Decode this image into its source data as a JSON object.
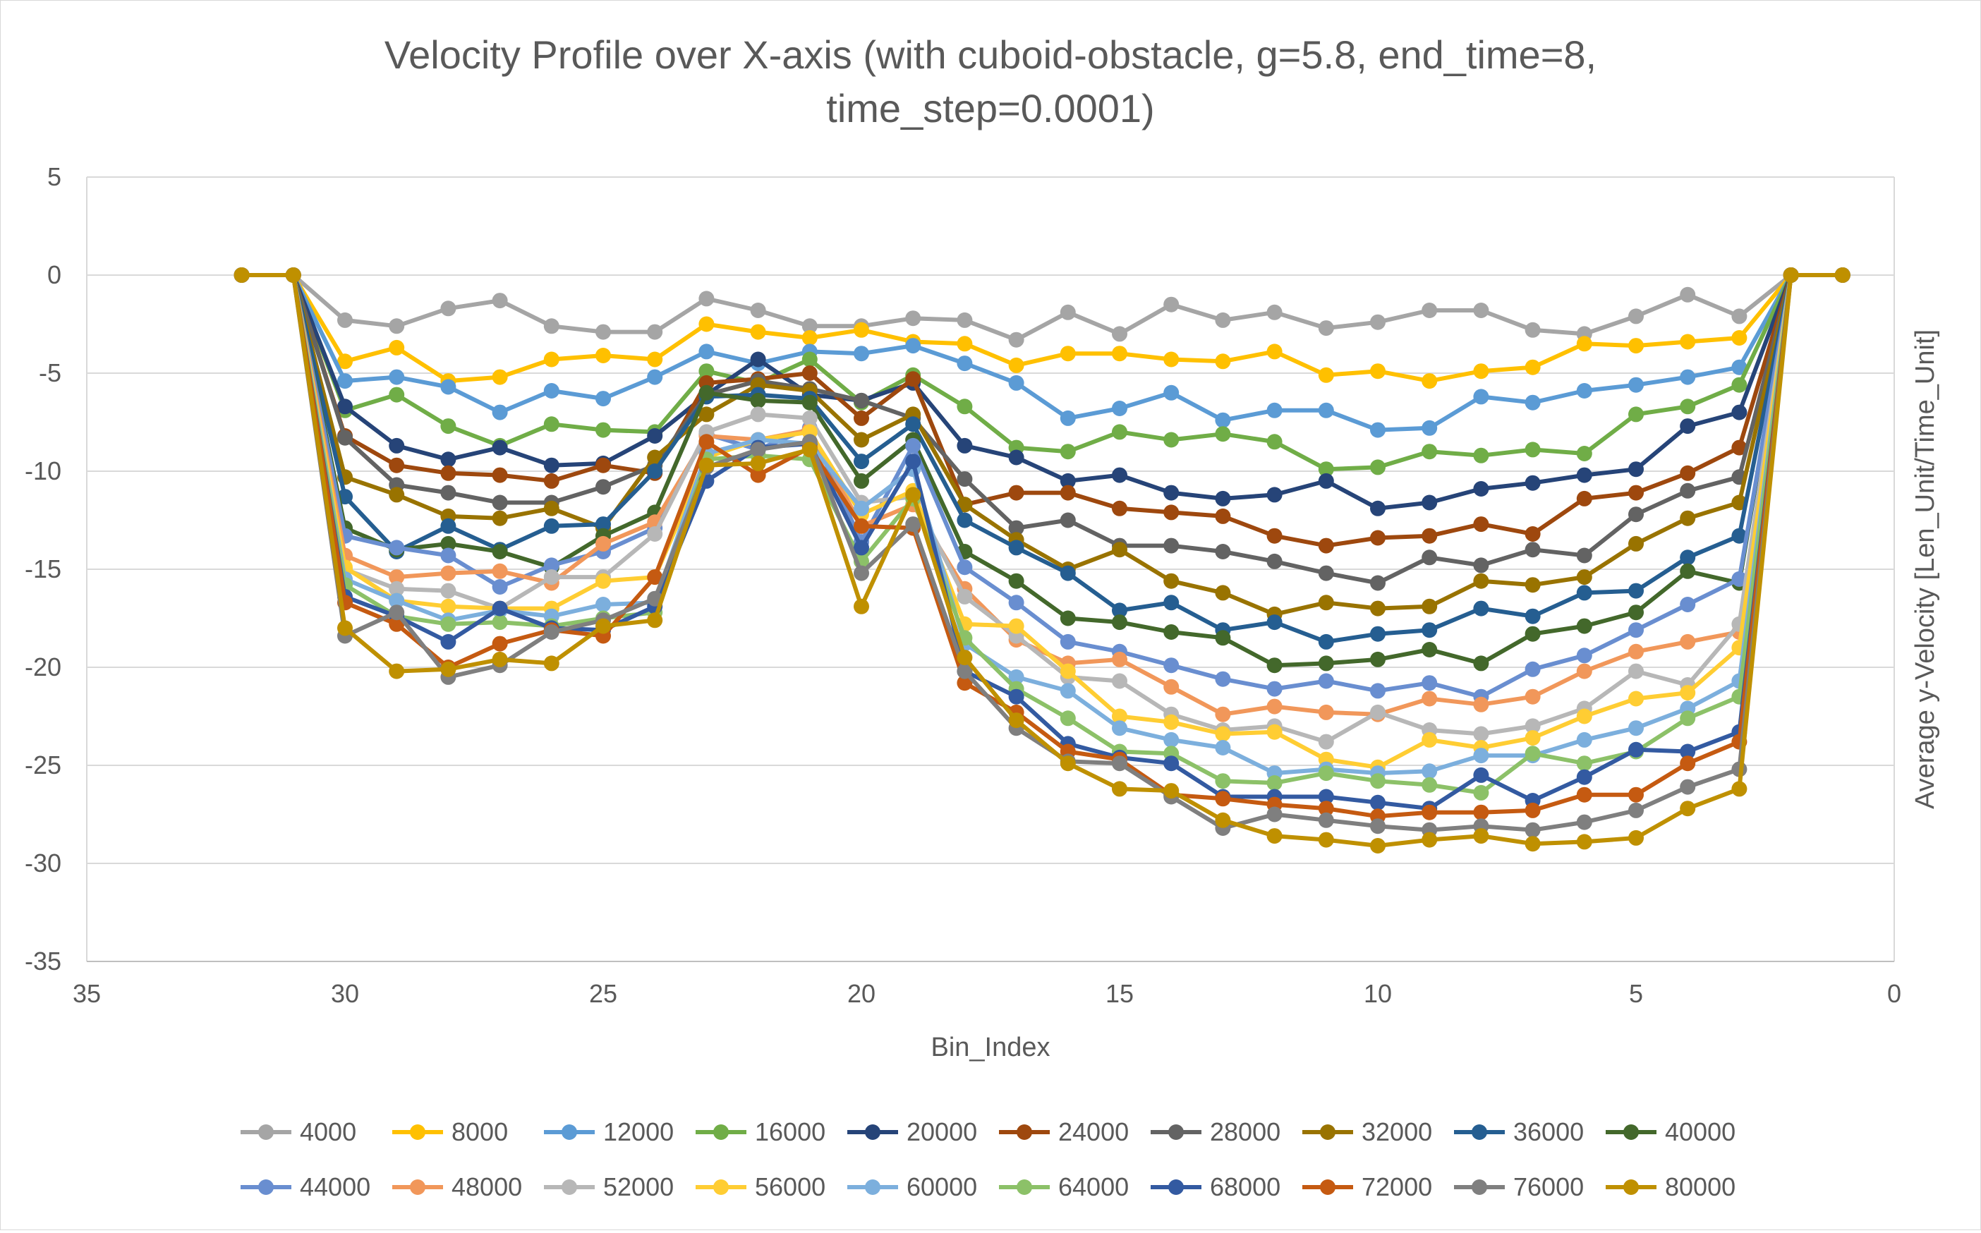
{
  "chart_data": {
    "type": "line",
    "title_lines": [
      "Velocity Profile over X-axis (with cuboid-obstacle, g=5.8, end_time=8,",
      "time_step=0.0001)"
    ],
    "xlabel": "Bin_Index",
    "ylabel": "Average y-Velocity [Len_Unit/Time_Unit]",
    "xlim": [
      35,
      0
    ],
    "x_reversed": true,
    "ylim": [
      -35,
      5
    ],
    "x_ticks": [
      35,
      30,
      25,
      20,
      15,
      10,
      5,
      0
    ],
    "y_ticks": [
      5,
      0,
      -5,
      -10,
      -15,
      -20,
      -25,
      -30,
      -35
    ],
    "grid": "horizontal",
    "legend_position": "bottom",
    "x": [
      32,
      31,
      30,
      29,
      28,
      27,
      26,
      25,
      24,
      23,
      22,
      21,
      20,
      19,
      18,
      17,
      16,
      15,
      14,
      13,
      12,
      11,
      10,
      9,
      8,
      7,
      6,
      5,
      4,
      3,
      2,
      1
    ],
    "series": [
      {
        "name": "4000",
        "color": "#a5a5a5",
        "values": [
          0,
          0,
          -2.3,
          -2.6,
          -1.7,
          -1.3,
          -2.6,
          -2.9,
          -2.9,
          -1.2,
          -1.8,
          -2.6,
          -2.6,
          -2.2,
          -2.3,
          -3.3,
          -1.9,
          -3.0,
          -1.5,
          -2.3,
          -1.9,
          -2.7,
          -2.4,
          -1.8,
          -1.8,
          -2.8,
          -3.0,
          -2.1,
          -1.0,
          -2.1,
          0,
          0
        ]
      },
      {
        "name": "8000",
        "color": "#ffc000",
        "values": [
          0,
          0,
          -4.4,
          -3.7,
          -5.4,
          -5.2,
          -4.3,
          -4.1,
          -4.3,
          -2.5,
          -2.9,
          -3.2,
          -2.8,
          -3.4,
          -3.5,
          -4.6,
          -4.0,
          -4.0,
          -4.3,
          -4.4,
          -3.9,
          -5.1,
          -4.9,
          -5.4,
          -4.9,
          -4.7,
          -3.5,
          -3.6,
          -3.4,
          -3.2,
          0,
          0
        ]
      },
      {
        "name": "12000",
        "color": "#5b9bd5",
        "values": [
          0,
          0,
          -5.4,
          -5.2,
          -5.7,
          -7.0,
          -5.9,
          -6.3,
          -5.2,
          -3.9,
          -4.5,
          -3.9,
          -4.0,
          -3.6,
          -4.5,
          -5.5,
          -7.3,
          -6.8,
          -6.0,
          -7.4,
          -6.9,
          -6.9,
          -7.9,
          -7.8,
          -6.2,
          -6.5,
          -5.9,
          -5.6,
          -5.2,
          -4.7,
          0,
          0
        ]
      },
      {
        "name": "16000",
        "color": "#70ad47",
        "values": [
          0,
          0,
          -6.9,
          -6.1,
          -7.7,
          -8.7,
          -7.6,
          -7.9,
          -8.0,
          -4.9,
          -5.5,
          -4.3,
          -6.5,
          -5.1,
          -6.7,
          -8.8,
          -9.0,
          -8.0,
          -8.4,
          -8.1,
          -8.5,
          -9.9,
          -9.8,
          -9.0,
          -9.2,
          -8.9,
          -9.1,
          -7.1,
          -6.7,
          -5.6,
          0,
          0
        ]
      },
      {
        "name": "20000",
        "color": "#264478",
        "values": [
          0,
          0,
          -6.7,
          -8.7,
          -9.4,
          -8.8,
          -9.7,
          -9.6,
          -8.2,
          -6.1,
          -4.3,
          -6.1,
          -6.4,
          -5.5,
          -8.7,
          -9.3,
          -10.5,
          -10.2,
          -11.1,
          -11.4,
          -11.2,
          -10.5,
          -11.9,
          -11.6,
          -10.9,
          -10.6,
          -10.2,
          -9.9,
          -7.7,
          -7.0,
          0,
          0
        ]
      },
      {
        "name": "24000",
        "color": "#9e480e",
        "values": [
          0,
          0,
          -8.2,
          -9.7,
          -10.1,
          -10.2,
          -10.5,
          -9.7,
          -10.1,
          -5.5,
          -5.3,
          -5.0,
          -7.3,
          -5.3,
          -11.7,
          -11.1,
          -11.1,
          -11.9,
          -12.1,
          -12.3,
          -13.3,
          -13.8,
          -13.4,
          -13.3,
          -12.7,
          -13.2,
          -11.4,
          -11.1,
          -10.1,
          -8.8,
          0,
          0
        ]
      },
      {
        "name": "28000",
        "color": "#636363",
        "values": [
          0,
          0,
          -8.3,
          -10.7,
          -11.1,
          -11.6,
          -11.6,
          -10.8,
          -9.7,
          -6.1,
          -5.4,
          -5.8,
          -6.4,
          -7.3,
          -10.4,
          -12.9,
          -12.5,
          -13.8,
          -13.8,
          -14.1,
          -14.6,
          -15.2,
          -15.7,
          -14.4,
          -14.8,
          -14.0,
          -14.3,
          -12.2,
          -11.0,
          -10.3,
          0,
          0
        ]
      },
      {
        "name": "32000",
        "color": "#997300",
        "values": [
          0,
          0,
          -10.3,
          -11.2,
          -12.3,
          -12.4,
          -11.9,
          -12.9,
          -9.3,
          -7.1,
          -5.6,
          -5.9,
          -8.4,
          -7.1,
          -11.7,
          -13.5,
          -15.0,
          -14.0,
          -15.6,
          -16.2,
          -17.3,
          -16.7,
          -17.0,
          -16.9,
          -15.6,
          -15.8,
          -15.4,
          -13.7,
          -12.4,
          -11.6,
          0,
          0
        ]
      },
      {
        "name": "36000",
        "color": "#255e91",
        "values": [
          0,
          0,
          -11.3,
          -14.1,
          -12.8,
          -14.0,
          -12.8,
          -12.7,
          -10.0,
          -6.2,
          -6.1,
          -6.3,
          -9.5,
          -7.6,
          -12.5,
          -13.9,
          -15.2,
          -17.1,
          -16.7,
          -18.1,
          -17.7,
          -18.7,
          -18.3,
          -18.1,
          -17.0,
          -17.4,
          -16.2,
          -16.1,
          -14.4,
          -13.3,
          0,
          0
        ]
      },
      {
        "name": "40000",
        "color": "#43682b",
        "values": [
          0,
          0,
          -12.9,
          -14.0,
          -13.7,
          -14.1,
          -14.9,
          -13.3,
          -12.1,
          -6.0,
          -6.4,
          -6.5,
          -10.5,
          -8.4,
          -14.1,
          -15.6,
          -17.5,
          -17.7,
          -18.2,
          -18.5,
          -19.9,
          -19.8,
          -19.6,
          -19.1,
          -19.8,
          -18.3,
          -17.9,
          -17.2,
          -15.1,
          -15.7,
          0,
          0
        ]
      },
      {
        "name": "44000",
        "color": "#698ed0",
        "values": [
          0,
          0,
          -13.3,
          -13.9,
          -14.3,
          -15.9,
          -14.8,
          -14.1,
          -12.9,
          -8.1,
          -8.9,
          -7.8,
          -13.6,
          -8.7,
          -14.9,
          -16.7,
          -18.7,
          -19.2,
          -19.9,
          -20.6,
          -21.1,
          -20.7,
          -21.2,
          -20.8,
          -21.5,
          -20.1,
          -19.4,
          -18.1,
          -16.8,
          -15.5,
          0,
          0
        ]
      },
      {
        "name": "48000",
        "color": "#f1975a",
        "values": [
          0,
          0,
          -14.3,
          -15.4,
          -15.2,
          -15.1,
          -15.7,
          -13.7,
          -12.6,
          -8.2,
          -8.4,
          -7.9,
          -12.8,
          -11.7,
          -16.0,
          -18.6,
          -19.8,
          -19.6,
          -21.0,
          -22.4,
          -22.0,
          -22.3,
          -22.4,
          -21.6,
          -21.9,
          -21.5,
          -20.2,
          -19.2,
          -18.7,
          -18.2,
          0,
          0
        ]
      },
      {
        "name": "52000",
        "color": "#b7b7b7",
        "values": [
          0,
          0,
          -15.0,
          -16.0,
          -16.1,
          -17.0,
          -15.4,
          -15.4,
          -13.2,
          -8.0,
          -7.1,
          -7.3,
          -11.6,
          -11.3,
          -16.4,
          -18.4,
          -20.5,
          -20.7,
          -22.4,
          -23.2,
          -23.0,
          -23.8,
          -22.3,
          -23.2,
          -23.4,
          -23.0,
          -22.1,
          -20.2,
          -20.9,
          -17.8,
          0,
          0
        ]
      },
      {
        "name": "56000",
        "color": "#ffcd33",
        "values": [
          0,
          0,
          -14.9,
          -16.6,
          -16.9,
          -17.0,
          -17.0,
          -15.6,
          -15.4,
          -9.3,
          -8.4,
          -8.0,
          -12.2,
          -11.0,
          -17.8,
          -17.9,
          -20.2,
          -22.5,
          -22.8,
          -23.4,
          -23.3,
          -24.7,
          -25.1,
          -23.7,
          -24.1,
          -23.6,
          -22.5,
          -21.6,
          -21.3,
          -19.0,
          0,
          0
        ]
      },
      {
        "name": "60000",
        "color": "#7cafdd",
        "values": [
          0,
          0,
          -15.5,
          -16.6,
          -17.6,
          -17.1,
          -17.4,
          -16.8,
          -16.7,
          -9.1,
          -8.4,
          -8.6,
          -11.9,
          -9.9,
          -18.8,
          -20.5,
          -21.2,
          -23.1,
          -23.7,
          -24.1,
          -25.4,
          -25.2,
          -25.4,
          -25.3,
          -24.5,
          -24.5,
          -23.7,
          -23.1,
          -22.1,
          -20.7,
          0,
          0
        ]
      },
      {
        "name": "64000",
        "color": "#8cc168",
        "values": [
          0,
          0,
          -15.8,
          -17.4,
          -17.8,
          -17.7,
          -17.9,
          -17.5,
          -17.2,
          -9.4,
          -9.2,
          -9.4,
          -14.6,
          -11.4,
          -18.5,
          -21.1,
          -22.6,
          -24.3,
          -24.4,
          -25.8,
          -25.9,
          -25.4,
          -25.8,
          -26.0,
          -26.4,
          -24.4,
          -24.9,
          -24.3,
          -22.6,
          -21.5,
          0,
          0
        ]
      },
      {
        "name": "68000",
        "color": "#335aa1",
        "values": [
          0,
          0,
          -16.4,
          -17.4,
          -18.7,
          -17.0,
          -18.0,
          -18.1,
          -16.9,
          -10.5,
          -8.8,
          -8.6,
          -13.9,
          -9.5,
          -20.2,
          -21.5,
          -23.9,
          -24.6,
          -24.9,
          -26.6,
          -26.6,
          -26.6,
          -26.9,
          -27.2,
          -25.5,
          -26.8,
          -25.6,
          -24.2,
          -24.3,
          -23.3,
          0,
          0
        ]
      },
      {
        "name": "72000",
        "color": "#c55a11",
        "values": [
          0,
          0,
          -16.7,
          -17.8,
          -20.0,
          -18.8,
          -18.1,
          -18.4,
          -15.4,
          -8.5,
          -10.2,
          -8.8,
          -12.8,
          -12.9,
          -20.8,
          -22.3,
          -24.3,
          -24.7,
          -26.5,
          -26.7,
          -27.0,
          -27.2,
          -27.6,
          -27.4,
          -27.4,
          -27.3,
          -26.5,
          -26.5,
          -24.9,
          -23.8,
          0,
          0
        ]
      },
      {
        "name": "76000",
        "color": "#7f7f7f",
        "values": [
          0,
          0,
          -18.4,
          -17.2,
          -20.5,
          -19.9,
          -18.2,
          -17.6,
          -16.5,
          -9.8,
          -8.9,
          -8.5,
          -15.2,
          -12.7,
          -20.2,
          -23.1,
          -24.8,
          -24.9,
          -26.6,
          -28.2,
          -27.5,
          -27.8,
          -28.1,
          -28.3,
          -28.1,
          -28.3,
          -27.9,
          -27.3,
          -26.1,
          -25.2,
          0,
          0
        ]
      },
      {
        "name": "80000",
        "color": "#bf9000",
        "values": [
          0,
          0,
          -18.0,
          -20.2,
          -20.1,
          -19.6,
          -19.8,
          -17.9,
          -17.6,
          -9.7,
          -9.6,
          -8.9,
          -16.9,
          -11.2,
          -19.5,
          -22.7,
          -24.9,
          -26.2,
          -26.3,
          -27.8,
          -28.6,
          -28.8,
          -29.1,
          -28.8,
          -28.6,
          -29.0,
          -28.9,
          -28.7,
          -27.2,
          -26.2,
          0,
          0
        ]
      }
    ]
  }
}
